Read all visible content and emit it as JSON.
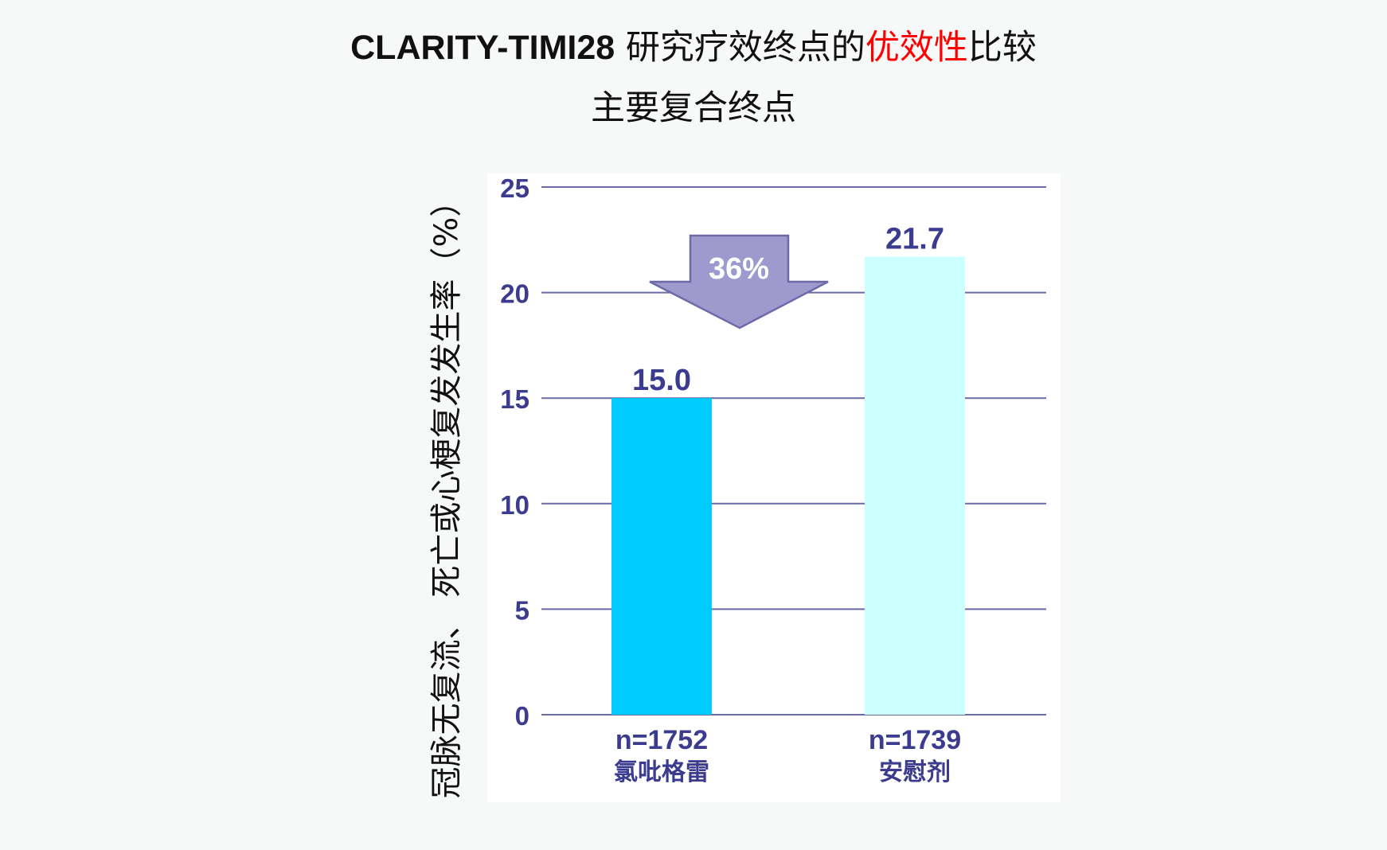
{
  "title": {
    "line1_en": "CLARITY-TIMI28",
    "line1_part2": " 研究疗效终点的",
    "line1_highlight": "优效性",
    "line1_part3": "比较",
    "line2": "主要复合终点"
  },
  "colors": {
    "title_highlight": "#ff0000",
    "bar_clopidogrel": "#00ccff",
    "bar_placebo": "#ccffff",
    "axis_text": "#3b3b8f",
    "gridline": "#6a6aa6",
    "arrow_fill": "#9e9ace",
    "arrow_stroke": "#6d6aa8"
  },
  "chart_data": {
    "type": "bar",
    "title": "",
    "xlabel": "",
    "ylabel": "冠脉无复流、 死亡或心梗复发发生率（%）",
    "ylim": [
      0,
      25
    ],
    "yticks": [
      0,
      5,
      10,
      15,
      20,
      25
    ],
    "grid": true,
    "categories": [
      {
        "n": "n=1752",
        "name": "氯吡格雷"
      },
      {
        "n": "n=1739",
        "name": "安慰剂"
      }
    ],
    "values": [
      15.0,
      21.7
    ],
    "value_labels": [
      "15.0",
      "21.7"
    ],
    "annotation": {
      "type": "down-arrow",
      "label": "36%"
    }
  }
}
